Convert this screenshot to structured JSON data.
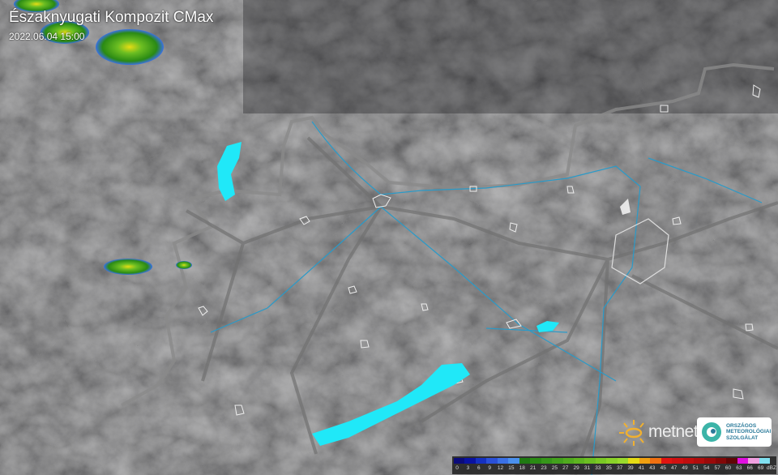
{
  "header": {
    "title": "Északnyugati Kompozit CMax",
    "timestamp": "2022.06.04 15:00"
  },
  "legend": {
    "ticks": [
      "0",
      "3",
      "6",
      "9",
      "12",
      "15",
      "18",
      "21",
      "23",
      "25",
      "27",
      "29",
      "31",
      "33",
      "35",
      "37",
      "39",
      "41",
      "43",
      "45",
      "47",
      "49",
      "51",
      "54",
      "57",
      "60",
      "63",
      "66",
      "69",
      "dBZ"
    ],
    "colors": [
      "#0b0b7a",
      "#0a12a0",
      "#1530c0",
      "#2a50d8",
      "#3a70e6",
      "#4a90ee",
      "#1f7a12",
      "#2a8a14",
      "#36961a",
      "#42a01c",
      "#50aa1e",
      "#5eb420",
      "#6cbe22",
      "#7ac824",
      "#8ad228",
      "#9ada2c",
      "#e6dc14",
      "#f0a010",
      "#f07010",
      "#e01410",
      "#d01010",
      "#c00e0e",
      "#b00c0c",
      "#9a0a0a",
      "#820808",
      "#600606",
      "#e010e0",
      "#f0a0e0",
      "#80e0f0"
    ]
  },
  "logos": {
    "metnet": "metnet",
    "omsz": [
      "ORSZÁGOS",
      "METEOROLÓGIAI",
      "SZOLGÁLAT"
    ]
  },
  "colors": {
    "background": "#2f2f30",
    "border": "#8a8a8a",
    "rivers": "#2a9ac8",
    "lakes": "#20e8f8"
  }
}
